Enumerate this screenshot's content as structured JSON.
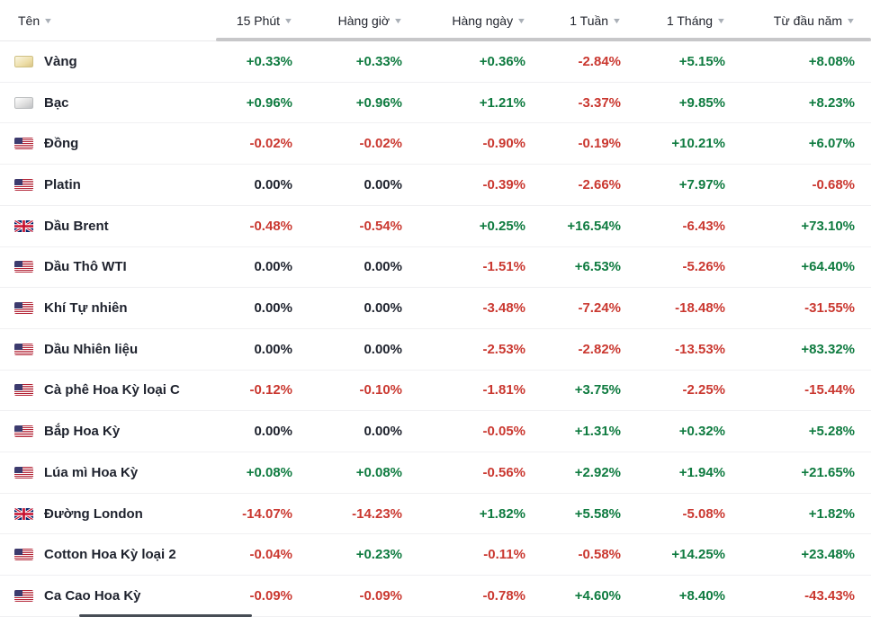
{
  "table": {
    "columns": [
      {
        "label": "Tên"
      },
      {
        "label": "15 Phút"
      },
      {
        "label": "Hàng giờ"
      },
      {
        "label": "Hàng ngày"
      },
      {
        "label": "1 Tuần"
      },
      {
        "label": "1 Tháng"
      },
      {
        "label": "Từ đầu năm"
      }
    ],
    "rows": [
      {
        "name": "Vàng",
        "icon": "gold-bar",
        "values": [
          "+0.33%",
          "+0.33%",
          "+0.36%",
          "-2.84%",
          "+5.15%",
          "+8.08%"
        ]
      },
      {
        "name": "Bạc",
        "icon": "silver-bar",
        "values": [
          "+0.96%",
          "+0.96%",
          "+1.21%",
          "-3.37%",
          "+9.85%",
          "+8.23%"
        ]
      },
      {
        "name": "Đồng",
        "icon": "us-flag",
        "values": [
          "-0.02%",
          "-0.02%",
          "-0.90%",
          "-0.19%",
          "+10.21%",
          "+6.07%"
        ]
      },
      {
        "name": "Platin",
        "icon": "us-flag",
        "values": [
          "0.00%",
          "0.00%",
          "-0.39%",
          "-2.66%",
          "+7.97%",
          "-0.68%"
        ]
      },
      {
        "name": "Dầu Brent",
        "icon": "uk-flag",
        "values": [
          "-0.48%",
          "-0.54%",
          "+0.25%",
          "+16.54%",
          "-6.43%",
          "+73.10%"
        ]
      },
      {
        "name": "Dầu Thô WTI",
        "icon": "us-flag",
        "values": [
          "0.00%",
          "0.00%",
          "-1.51%",
          "+6.53%",
          "-5.26%",
          "+64.40%"
        ]
      },
      {
        "name": "Khí Tự nhiên",
        "icon": "us-flag",
        "values": [
          "0.00%",
          "0.00%",
          "-3.48%",
          "-7.24%",
          "-18.48%",
          "-31.55%"
        ]
      },
      {
        "name": "Dầu Nhiên liệu",
        "icon": "us-flag",
        "values": [
          "0.00%",
          "0.00%",
          "-2.53%",
          "-2.82%",
          "-13.53%",
          "+83.32%"
        ]
      },
      {
        "name": "Cà phê Hoa Kỳ loại C",
        "icon": "us-flag",
        "values": [
          "-0.12%",
          "-0.10%",
          "-1.81%",
          "+3.75%",
          "-2.25%",
          "-15.44%"
        ]
      },
      {
        "name": "Bắp Hoa Kỳ",
        "icon": "us-flag",
        "values": [
          "0.00%",
          "0.00%",
          "-0.05%",
          "+1.31%",
          "+0.32%",
          "+5.28%"
        ]
      },
      {
        "name": "Lúa mì Hoa Kỳ",
        "icon": "us-flag",
        "values": [
          "+0.08%",
          "+0.08%",
          "-0.56%",
          "+2.92%",
          "+1.94%",
          "+21.65%"
        ]
      },
      {
        "name": "Đường London",
        "icon": "uk-flag",
        "values": [
          "-14.07%",
          "-14.23%",
          "+1.82%",
          "+5.58%",
          "-5.08%",
          "+1.82%"
        ]
      },
      {
        "name": "Cotton Hoa Kỳ loại 2",
        "icon": "us-flag",
        "values": [
          "-0.04%",
          "+0.23%",
          "-0.11%",
          "-0.58%",
          "+14.25%",
          "+23.48%"
        ]
      },
      {
        "name": "Ca Cao Hoa Kỳ",
        "icon": "us-flag",
        "values": [
          "-0.09%",
          "-0.09%",
          "-0.78%",
          "+4.60%",
          "+8.40%",
          "-43.43%"
        ]
      }
    ],
    "sort_arrow": "▼",
    "colors": {
      "positive": "#0f7b40",
      "negative": "#ca3830",
      "neutral": "#1e222d"
    }
  }
}
